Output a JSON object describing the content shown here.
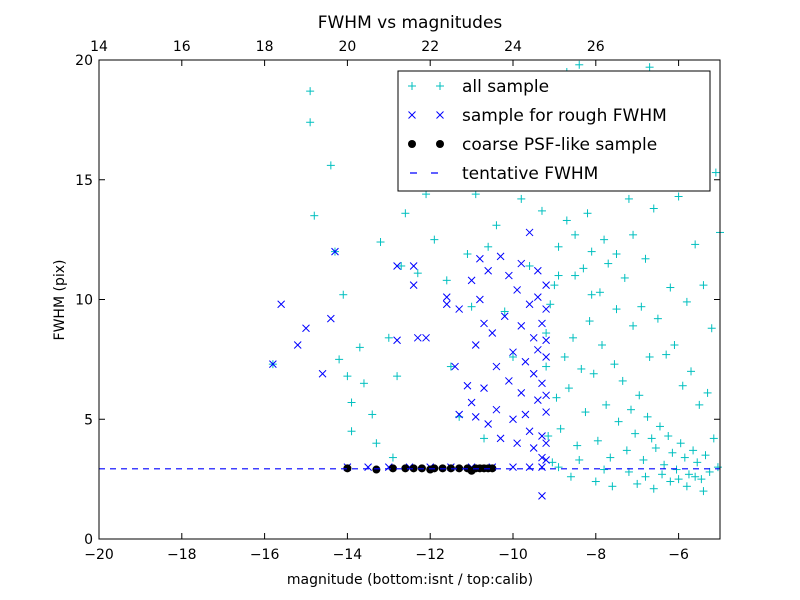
{
  "chart_data": {
    "type": "scatter",
    "title": "FWHM vs magnitudes",
    "xlabel": "magnitude (bottom:isnt / top:calib)",
    "ylabel": "FWHM (pix)",
    "xlim": [
      -20,
      -5
    ],
    "ylim": [
      0,
      20
    ],
    "x_ticks": [
      -20,
      -18,
      -16,
      -14,
      -12,
      -10,
      -8,
      -6
    ],
    "y_ticks": [
      0,
      5,
      10,
      15,
      20
    ],
    "top_axis": {
      "label": "calib",
      "offset": 34,
      "ticks": [
        14,
        16,
        18,
        20,
        22,
        24,
        26
      ]
    },
    "grid": false,
    "legend": {
      "position": "upper-right",
      "entries": [
        {
          "label": "all sample",
          "marker": "plus",
          "color": "#00bfbf"
        },
        {
          "label": "sample for rough FWHM",
          "marker": "x",
          "color": "#0000ff"
        },
        {
          "label": "coarse PSF-like sample",
          "marker": "dot",
          "color": "#000000"
        },
        {
          "label": "tentative FWHM",
          "marker": "dashed-line",
          "color": "#0000ff"
        }
      ]
    },
    "tentative_fwhm": 2.93,
    "series": [
      {
        "name": "all sample",
        "marker": "plus",
        "color": "#00bfbf",
        "points": [
          [
            -15.8,
            7.3
          ],
          [
            -14.9,
            18.7
          ],
          [
            -14.9,
            17.4
          ],
          [
            -14.8,
            13.5
          ],
          [
            -14.4,
            15.6
          ],
          [
            -14.3,
            12.0
          ],
          [
            -14.2,
            7.5
          ],
          [
            -14.0,
            6.8
          ],
          [
            -14.1,
            10.2
          ],
          [
            -13.9,
            5.7
          ],
          [
            -13.9,
            4.5
          ],
          [
            -13.7,
            8.0
          ],
          [
            -13.6,
            6.5
          ],
          [
            -13.4,
            5.2
          ],
          [
            -13.3,
            4.0
          ],
          [
            -13.2,
            12.4
          ],
          [
            -13.0,
            8.4
          ],
          [
            -12.9,
            3.4
          ],
          [
            -12.8,
            6.8
          ],
          [
            -12.7,
            11.4
          ],
          [
            -12.6,
            13.6
          ],
          [
            -12.4,
            16.3
          ],
          [
            -12.3,
            11.1
          ],
          [
            -12.1,
            14.4
          ],
          [
            -11.9,
            12.5
          ],
          [
            -11.6,
            10.8
          ],
          [
            -11.5,
            7.2
          ],
          [
            -11.3,
            5.1
          ],
          [
            -11.1,
            11.9
          ],
          [
            -11.0,
            9.7
          ],
          [
            -10.9,
            14.4
          ],
          [
            -10.7,
            4.2
          ],
          [
            -10.6,
            12.2
          ],
          [
            -10.4,
            13.1
          ],
          [
            -10.2,
            9.5
          ],
          [
            -10.1,
            16.2
          ],
          [
            -10.0,
            7.6
          ],
          [
            -9.8,
            14.2
          ],
          [
            -9.6,
            11.4
          ],
          [
            -9.4,
            18.9
          ],
          [
            -9.3,
            13.7
          ],
          [
            -9.2,
            7.2
          ],
          [
            -9.1,
            15.5
          ],
          [
            -9.0,
            10.6
          ],
          [
            -8.9,
            12.2
          ],
          [
            -8.8,
            17.8
          ],
          [
            -8.7,
            19.5
          ],
          [
            -8.6,
            14.9
          ],
          [
            -8.5,
            11.0
          ],
          [
            -8.4,
            19.8
          ],
          [
            -8.3,
            16.4
          ],
          [
            -8.2,
            13.6
          ],
          [
            -8.1,
            10.2
          ],
          [
            -8.0,
            17.5
          ],
          [
            -7.9,
            14.8
          ],
          [
            -7.8,
            12.5
          ],
          [
            -7.7,
            18.6
          ],
          [
            -7.6,
            15.4
          ],
          [
            -7.5,
            11.9
          ],
          [
            -7.4,
            19.0
          ],
          [
            -7.3,
            16.9
          ],
          [
            -7.2,
            14.2
          ],
          [
            -7.1,
            12.7
          ],
          [
            -7.0,
            17.9
          ],
          [
            -6.9,
            15.1
          ],
          [
            -6.8,
            11.7
          ],
          [
            -6.7,
            19.7
          ],
          [
            -6.6,
            13.8
          ],
          [
            -6.4,
            16.6
          ],
          [
            -6.2,
            10.5
          ],
          [
            -6.0,
            14.3
          ],
          [
            -5.8,
            9.9
          ],
          [
            -5.6,
            12.3
          ],
          [
            -5.4,
            10.6
          ],
          [
            -5.2,
            8.8
          ],
          [
            -5.1,
            15.3
          ],
          [
            -5.0,
            12.8
          ],
          [
            -5.3,
            6.1
          ],
          [
            -5.5,
            5.6
          ],
          [
            -5.7,
            7.0
          ],
          [
            -5.9,
            6.4
          ],
          [
            -6.1,
            8.1
          ],
          [
            -6.3,
            7.7
          ],
          [
            -6.5,
            9.2
          ],
          [
            -6.7,
            7.6
          ],
          [
            -6.9,
            9.7
          ],
          [
            -7.1,
            8.9
          ],
          [
            -7.3,
            10.9
          ],
          [
            -7.5,
            9.6
          ],
          [
            -7.7,
            11.5
          ],
          [
            -7.9,
            10.3
          ],
          [
            -8.1,
            12.0
          ],
          [
            -8.3,
            11.3
          ],
          [
            -8.5,
            12.7
          ],
          [
            -8.7,
            13.3
          ],
          [
            -8.9,
            11.0
          ],
          [
            -9.1,
            9.8
          ],
          [
            -9.2,
            8.6
          ],
          [
            -9.15,
            4.3
          ],
          [
            -9.05,
            3.2
          ],
          [
            -8.95,
            5.9
          ],
          [
            -8.85,
            4.6
          ],
          [
            -8.75,
            7.6
          ],
          [
            -8.65,
            6.3
          ],
          [
            -8.55,
            8.4
          ],
          [
            -8.45,
            3.9
          ],
          [
            -8.35,
            7.1
          ],
          [
            -8.25,
            5.3
          ],
          [
            -8.15,
            9.1
          ],
          [
            -8.05,
            6.9
          ],
          [
            -7.95,
            4.1
          ],
          [
            -7.85,
            8.1
          ],
          [
            -7.75,
            5.6
          ],
          [
            -7.65,
            3.4
          ],
          [
            -7.55,
            7.3
          ],
          [
            -7.45,
            4.9
          ],
          [
            -7.35,
            6.6
          ],
          [
            -7.25,
            3.7
          ],
          [
            -7.15,
            5.4
          ],
          [
            -7.05,
            4.4
          ],
          [
            -6.95,
            6.0
          ],
          [
            -6.85,
            3.3
          ],
          [
            -6.75,
            5.1
          ],
          [
            -6.65,
            4.2
          ],
          [
            -6.55,
            3.8
          ],
          [
            -6.45,
            4.7
          ],
          [
            -6.35,
            3.1
          ],
          [
            -6.25,
            4.3
          ],
          [
            -6.15,
            3.6
          ],
          [
            -6.05,
            2.9
          ],
          [
            -5.95,
            4.0
          ],
          [
            -5.85,
            3.4
          ],
          [
            -5.75,
            2.7
          ],
          [
            -5.65,
            3.7
          ],
          [
            -5.55,
            3.2
          ],
          [
            -5.45,
            2.5
          ],
          [
            -5.35,
            3.5
          ],
          [
            -5.25,
            2.8
          ],
          [
            -5.15,
            4.2
          ],
          [
            -5.05,
            3.0
          ],
          [
            -8.6,
            2.6
          ],
          [
            -8.0,
            2.4
          ],
          [
            -7.6,
            2.2
          ],
          [
            -7.0,
            2.3
          ],
          [
            -6.6,
            2.1
          ],
          [
            -6.2,
            2.4
          ],
          [
            -5.8,
            2.2
          ],
          [
            -5.4,
            2.0
          ],
          [
            -8.9,
            3.0
          ],
          [
            -8.4,
            3.3
          ],
          [
            -7.8,
            2.9
          ],
          [
            -7.2,
            2.8
          ],
          [
            -6.8,
            2.6
          ],
          [
            -6.4,
            2.7
          ],
          [
            -6.0,
            2.5
          ],
          [
            -5.6,
            2.6
          ]
        ]
      },
      {
        "name": "sample for rough FWHM",
        "marker": "x",
        "color": "#0000ff",
        "points": [
          [
            -15.8,
            7.3
          ],
          [
            -15.6,
            9.8
          ],
          [
            -15.2,
            8.1
          ],
          [
            -15.0,
            8.8
          ],
          [
            -14.6,
            6.9
          ],
          [
            -14.4,
            9.2
          ],
          [
            -14.3,
            12.0
          ],
          [
            -12.8,
            11.4
          ],
          [
            -12.8,
            8.3
          ],
          [
            -12.4,
            11.4
          ],
          [
            -12.3,
            8.4
          ],
          [
            -12.4,
            10.6
          ],
          [
            -12.1,
            8.4
          ],
          [
            -11.6,
            10.1
          ],
          [
            -11.6,
            9.8
          ],
          [
            -11.4,
            7.2
          ],
          [
            -11.3,
            9.6
          ],
          [
            -11.3,
            5.2
          ],
          [
            -11.1,
            6.4
          ],
          [
            -11.0,
            5.7
          ],
          [
            -11.0,
            10.8
          ],
          [
            -10.9,
            8.1
          ],
          [
            -10.9,
            5.1
          ],
          [
            -10.8,
            11.7
          ],
          [
            -10.8,
            10.0
          ],
          [
            -10.7,
            9.0
          ],
          [
            -10.7,
            6.3
          ],
          [
            -10.6,
            4.8
          ],
          [
            -10.6,
            11.2
          ],
          [
            -10.5,
            8.6
          ],
          [
            -10.4,
            5.4
          ],
          [
            -10.4,
            7.2
          ],
          [
            -10.3,
            11.8
          ],
          [
            -10.3,
            4.2
          ],
          [
            -10.2,
            9.3
          ],
          [
            -10.1,
            6.6
          ],
          [
            -10.1,
            11.0
          ],
          [
            -10.0,
            5.0
          ],
          [
            -10.0,
            7.8
          ],
          [
            -9.9,
            10.4
          ],
          [
            -9.9,
            4.0
          ],
          [
            -9.8,
            8.9
          ],
          [
            -9.8,
            6.1
          ],
          [
            -9.8,
            11.5
          ],
          [
            -9.7,
            5.2
          ],
          [
            -9.7,
            7.4
          ],
          [
            -9.6,
            9.8
          ],
          [
            -9.6,
            4.5
          ],
          [
            -9.6,
            12.8
          ],
          [
            -9.5,
            6.9
          ],
          [
            -9.5,
            8.4
          ],
          [
            -9.5,
            3.8
          ],
          [
            -9.4,
            11.2
          ],
          [
            -9.4,
            5.8
          ],
          [
            -9.4,
            7.9
          ],
          [
            -9.4,
            10.1
          ],
          [
            -9.3,
            4.3
          ],
          [
            -9.3,
            6.5
          ],
          [
            -9.3,
            9.0
          ],
          [
            -9.3,
            3.4
          ],
          [
            -9.3,
            1.8
          ],
          [
            -9.2,
            5.3
          ],
          [
            -9.2,
            7.6
          ],
          [
            -9.2,
            10.6
          ],
          [
            -9.2,
            4.0
          ],
          [
            -9.2,
            8.3
          ],
          [
            -9.2,
            6.0
          ],
          [
            -9.2,
            3.3
          ],
          [
            -9.2,
            9.6
          ],
          [
            -14.0,
            3.0
          ],
          [
            -13.5,
            3.0
          ],
          [
            -13.0,
            3.0
          ],
          [
            -12.5,
            3.0
          ],
          [
            -12.0,
            3.0
          ],
          [
            -11.5,
            3.0
          ],
          [
            -11.0,
            3.0
          ],
          [
            -10.5,
            3.0
          ],
          [
            -10.0,
            3.0
          ],
          [
            -9.6,
            3.0
          ],
          [
            -9.3,
            3.0
          ]
        ]
      },
      {
        "name": "coarse PSF-like sample",
        "marker": "dot",
        "color": "#000000",
        "points": [
          [
            -14.0,
            2.95
          ],
          [
            -13.3,
            2.9
          ],
          [
            -12.9,
            2.95
          ],
          [
            -12.6,
            2.95
          ],
          [
            -12.4,
            2.95
          ],
          [
            -12.2,
            2.95
          ],
          [
            -12.0,
            2.9
          ],
          [
            -11.9,
            2.95
          ],
          [
            -11.7,
            2.95
          ],
          [
            -11.5,
            2.95
          ],
          [
            -11.3,
            2.95
          ],
          [
            -11.1,
            2.95
          ],
          [
            -11.0,
            2.85
          ],
          [
            -10.9,
            2.95
          ],
          [
            -10.8,
            2.95
          ],
          [
            -10.7,
            2.95
          ],
          [
            -10.6,
            2.95
          ],
          [
            -10.5,
            2.95
          ]
        ]
      }
    ]
  }
}
